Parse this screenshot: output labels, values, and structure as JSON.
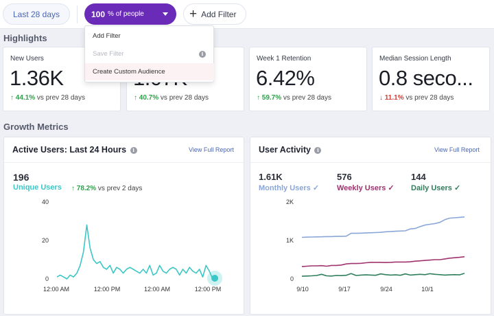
{
  "toolbar": {
    "date_range": "Last 28 days",
    "people_value": "100",
    "people_suffix": "% of people",
    "add_filter": "Add Filter"
  },
  "dropdown": {
    "items": [
      {
        "label": "Add Filter",
        "state": "normal"
      },
      {
        "label": "Save Filter",
        "state": "disabled"
      },
      {
        "label": "Create Custom Audience",
        "state": "hovered"
      }
    ]
  },
  "highlights": {
    "title": "Highlights",
    "cards": [
      {
        "label": "New Users",
        "value": "1.36K",
        "delta": "44.1%",
        "direction": "up",
        "comparison": "vs prev 28 days"
      },
      {
        "label": "",
        "value": "1.07K",
        "delta": "40.7%",
        "direction": "up",
        "comparison": "vs prev 28 days"
      },
      {
        "label": "Week 1 Retention",
        "value": "6.42%",
        "delta": "59.7%",
        "direction": "up",
        "comparison": "vs prev 28 days"
      },
      {
        "label": "Median Session Length",
        "value": "0.8 seco...",
        "delta": "11.1%",
        "direction": "down",
        "comparison": "vs prev 28 days"
      }
    ]
  },
  "growth": {
    "title": "Growth Metrics",
    "active_users": {
      "title": "Active Users: Last 24 Hours",
      "link": "View Full Report",
      "count": "196",
      "series_label": "Unique Users",
      "delta": "78.2%",
      "comparison": "vs prev 2 days"
    },
    "user_activity": {
      "title": "User Activity",
      "link": "View Full Report",
      "metrics": [
        {
          "value": "1.61K",
          "name": "Monthly Users",
          "color": "#8aa6d8"
        },
        {
          "value": "576",
          "name": "Weekly Users",
          "color": "#a0326f"
        },
        {
          "value": "144",
          "name": "Daily Users",
          "color": "#2e7d5b"
        }
      ]
    }
  },
  "chart_data": [
    {
      "type": "line",
      "title": "Active Users: Last 24 Hours",
      "x_tick_labels": [
        "12:00 AM",
        "12:00 PM",
        "12:00 AM",
        "12:00 PM"
      ],
      "y_tick_labels": [
        "0",
        "20",
        "40"
      ],
      "ylim": [
        0,
        40
      ],
      "grid": false,
      "series": [
        {
          "name": "Unique Users",
          "color": "#3cc6c6",
          "values": [
            1,
            2,
            1,
            0,
            2,
            1,
            3,
            7,
            14,
            28,
            16,
            10,
            8,
            9,
            6,
            5,
            7,
            3,
            6,
            5,
            3,
            5,
            6,
            5,
            4,
            3,
            5,
            3,
            7,
            2,
            3,
            7,
            4,
            3,
            5,
            6,
            5,
            2,
            5,
            3,
            6,
            4,
            3,
            5,
            1,
            7,
            4,
            0
          ]
        }
      ]
    },
    {
      "type": "line",
      "title": "User Activity",
      "x_tick_labels": [
        "9/10",
        "9/17",
        "9/24",
        "10/1"
      ],
      "y_tick_labels": [
        "0",
        "1K",
        "2K"
      ],
      "ylim": [
        0,
        2000
      ],
      "grid": false,
      "series": [
        {
          "name": "Monthly Users",
          "color": "#8aa6d8",
          "values": [
            1080,
            1085,
            1090,
            1092,
            1095,
            1100,
            1100,
            1105,
            1105,
            1110,
            1185,
            1185,
            1190,
            1195,
            1200,
            1205,
            1210,
            1225,
            1230,
            1240,
            1245,
            1250,
            1300,
            1310,
            1360,
            1400,
            1420,
            1440,
            1470,
            1540,
            1580,
            1590,
            1600,
            1610
          ]
        },
        {
          "name": "Weekly Users",
          "color": "#a0326f",
          "values": [
            320,
            330,
            340,
            340,
            345,
            330,
            350,
            350,
            360,
            390,
            400,
            400,
            405,
            420,
            430,
            430,
            430,
            425,
            430,
            440,
            440,
            440,
            445,
            460,
            470,
            480,
            490,
            500,
            500,
            520,
            540,
            550,
            560,
            576
          ]
        },
        {
          "name": "Daily Users",
          "color": "#2e7d5b",
          "values": [
            70,
            75,
            80,
            90,
            120,
            80,
            75,
            90,
            85,
            95,
            140,
            90,
            100,
            105,
            100,
            95,
            130,
            110,
            100,
            105,
            95,
            130,
            100,
            110,
            120,
            110,
            135,
            120,
            110,
            100,
            105,
            110,
            105,
            144
          ]
        }
      ]
    }
  ]
}
